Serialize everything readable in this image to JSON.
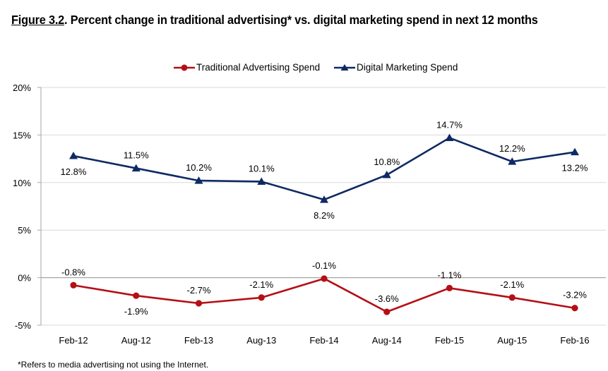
{
  "title": {
    "figure_label": "Figure 3.2",
    "text": ".  Percent change in traditional advertising* vs. digital marketing spend in next 12 months"
  },
  "footnote": "*Refers to media advertising not using the Internet.",
  "colors": {
    "traditional": "#B50F16",
    "digital": "#0E2A63",
    "grid": "#D9D9D9",
    "zero_line": "#A6A6A6",
    "axis": "#A6A6A6"
  },
  "chart_data": {
    "type": "line",
    "title": "Percent change in traditional advertising* vs. digital marketing spend in next 12 months",
    "xlabel": "",
    "ylabel": "",
    "categories": [
      "Feb-12",
      "Aug-12",
      "Feb-13",
      "Aug-13",
      "Feb-14",
      "Aug-14",
      "Feb-15",
      "Aug-15",
      "Feb-16"
    ],
    "ylim": [
      -5,
      20
    ],
    "yticks": [
      -5,
      0,
      5,
      10,
      15,
      20
    ],
    "ytick_labels": [
      "-5%",
      "0%",
      "5%",
      "10%",
      "15%",
      "20%"
    ],
    "grid": true,
    "legend_position": "top-center",
    "series": [
      {
        "name": "Traditional Advertising Spend",
        "marker": "circle",
        "color": "#B50F16",
        "values": [
          -0.8,
          -1.9,
          -2.7,
          -2.1,
          -0.1,
          -3.6,
          -1.1,
          -2.1,
          -3.2
        ],
        "labels": [
          "-0.8%",
          "-1.9%",
          "-2.7%",
          "-2.1%",
          "-0.1%",
          "-3.6%",
          "-1.1%",
          "-2.1%",
          "-3.2%"
        ],
        "label_positions": [
          "above",
          "below",
          "above",
          "above",
          "above",
          "above",
          "above",
          "above",
          "above"
        ]
      },
      {
        "name": "Digital Marketing Spend",
        "marker": "triangle",
        "color": "#0E2A63",
        "values": [
          12.8,
          11.5,
          10.2,
          10.1,
          8.2,
          10.8,
          14.7,
          12.2,
          13.2
        ],
        "labels": [
          "12.8%",
          "11.5%",
          "10.2%",
          "10.1%",
          "8.2%",
          "10.8%",
          "14.7%",
          "12.2%",
          "13.2%"
        ],
        "label_positions": [
          "below",
          "above",
          "above",
          "above",
          "below",
          "above",
          "above",
          "above",
          "below"
        ]
      }
    ]
  }
}
